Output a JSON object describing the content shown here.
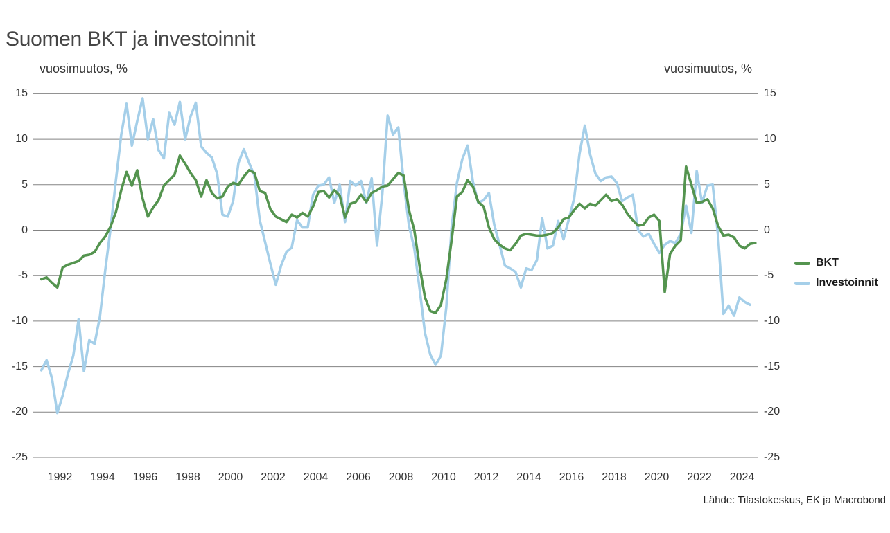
{
  "title": "Suomen BKT ja investoinnit",
  "axis_left_label": "vuosimuutos, %",
  "axis_right_label": "vuosimuutos, %",
  "source": "Lähde: Tilastokeskus, EK ja Macrobond",
  "colors": {
    "bkt_line": "#54944f",
    "investoinnit_line": "#a5cfe9",
    "gridline": "#838383",
    "title_text": "#454545",
    "tick_text": "#333333"
  },
  "legend": [
    {
      "label": "BKT",
      "color": "#54944f"
    },
    {
      "label": "Investoinnit",
      "color": "#a5cfe9"
    }
  ],
  "chart_data": {
    "type": "line",
    "title": "Suomen BKT ja investoinnit",
    "ylabel": "vuosimuutos, %",
    "ylabel_right": "vuosimuutos, %",
    "ylim": [
      -25,
      15
    ],
    "yticks": [
      15,
      10,
      5,
      0,
      -5,
      -10,
      -15,
      -20,
      -25
    ],
    "xticks": [
      1992,
      1994,
      1996,
      1998,
      2000,
      2002,
      2004,
      2006,
      2008,
      2010,
      2012,
      2014,
      2016,
      2018,
      2020,
      2022,
      2024
    ],
    "x_start": "1991Q1",
    "frequency": "quarterly",
    "grid": true,
    "legend_position": "right",
    "series": [
      {
        "name": "BKT",
        "color": "#54944f",
        "values": [
          -5.4,
          -5.2,
          -5.8,
          -6.3,
          -4.1,
          -3.8,
          -3.6,
          -3.4,
          -2.8,
          -2.7,
          -2.4,
          -1.4,
          -0.7,
          0.4,
          2.0,
          4.4,
          6.4,
          4.9,
          6.6,
          3.5,
          1.5,
          2.5,
          3.3,
          4.9,
          5.5,
          6.1,
          8.2,
          7.3,
          6.3,
          5.5,
          3.7,
          5.5,
          4.1,
          3.5,
          3.7,
          4.8,
          5.2,
          5.0,
          5.9,
          6.6,
          6.3,
          4.3,
          4.1,
          2.3,
          1.5,
          1.2,
          0.9,
          1.7,
          1.4,
          1.9,
          1.5,
          2.6,
          4.2,
          4.3,
          3.6,
          4.4,
          3.8,
          1.4,
          2.9,
          3.1,
          3.9,
          3.1,
          4.1,
          4.4,
          4.8,
          4.9,
          5.6,
          6.3,
          6.0,
          2.2,
          0.0,
          -4.0,
          -7.4,
          -8.9,
          -9.1,
          -8.2,
          -5.4,
          -1.1,
          3.7,
          4.2,
          5.5,
          4.8,
          3.1,
          2.6,
          0.3,
          -1.0,
          -1.6,
          -2.0,
          -2.2,
          -1.5,
          -0.6,
          -0.4,
          -0.5,
          -0.6,
          -0.6,
          -0.5,
          -0.3,
          0.3,
          1.2,
          1.4,
          2.2,
          2.9,
          2.4,
          2.9,
          2.7,
          3.3,
          3.9,
          3.2,
          3.4,
          2.8,
          1.8,
          1.1,
          0.5,
          0.6,
          1.4,
          1.7,
          1.0,
          -6.8,
          -2.6,
          -1.7,
          -1.1,
          7.0,
          5.0,
          3.0,
          3.1,
          3.4,
          2.4,
          0.5,
          -0.6,
          -0.5,
          -0.8,
          -1.7,
          -2.0,
          -1.5,
          -1.4
        ]
      },
      {
        "name": "Investoinnit",
        "color": "#a5cfe9",
        "values": [
          -15.4,
          -14.3,
          -16.3,
          -20.1,
          -18.2,
          -15.8,
          -13.8,
          -9.8,
          -15.5,
          -12.1,
          -12.5,
          -9.5,
          -4.4,
          0.2,
          5.5,
          10.5,
          13.9,
          9.3,
          12.0,
          14.5,
          10.0,
          12.2,
          8.8,
          7.9,
          12.9,
          11.6,
          14.1,
          10.0,
          12.5,
          14.0,
          9.2,
          8.5,
          8.0,
          6.2,
          1.7,
          1.5,
          3.2,
          7.4,
          8.9,
          7.4,
          6.0,
          1.1,
          -1.3,
          -3.7,
          -6.0,
          -3.9,
          -2.4,
          -1.9,
          1.1,
          0.3,
          0.3,
          3.9,
          4.9,
          5.0,
          5.8,
          3.0,
          5.0,
          0.9,
          5.4,
          4.9,
          5.4,
          3.0,
          5.7,
          -1.7,
          4.0,
          12.6,
          10.5,
          11.3,
          5.3,
          0.5,
          -2.0,
          -6.5,
          -11.3,
          -13.7,
          -14.8,
          -13.8,
          -8.5,
          0.3,
          5.2,
          7.8,
          9.3,
          5.3,
          3.0,
          3.3,
          4.1,
          0.6,
          -1.6,
          -3.9,
          -4.2,
          -4.6,
          -6.3,
          -4.2,
          -4.4,
          -3.3,
          1.3,
          -2.0,
          -1.7,
          1.0,
          -1.0,
          1.2,
          3.5,
          8.4,
          11.5,
          8.3,
          6.2,
          5.4,
          5.8,
          5.9,
          5.2,
          3.2,
          3.6,
          3.9,
          0.0,
          -0.7,
          -0.4,
          -1.5,
          -2.5,
          -1.6,
          -1.2,
          -1.4,
          -0.4,
          2.7,
          -0.3,
          6.5,
          3.0,
          4.9,
          5.0,
          -0.6,
          -9.2,
          -8.3,
          -9.4,
          -7.4,
          -7.9,
          -8.2
        ]
      }
    ]
  }
}
